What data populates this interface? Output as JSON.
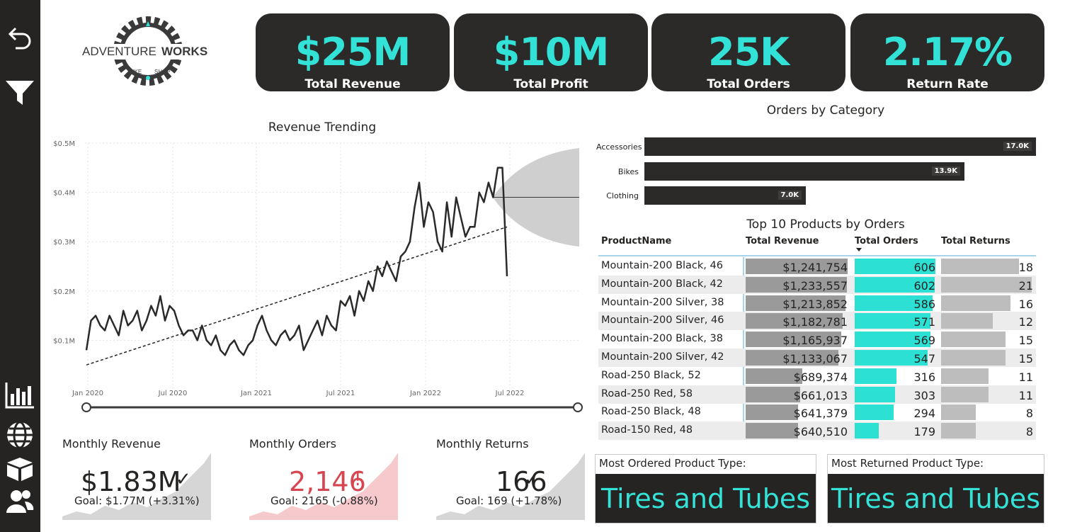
{
  "sidebar": {
    "icons": [
      "back-arrow-icon",
      "filter-icon",
      "bar-chart-icon",
      "globe-icon",
      "box-icon",
      "users-icon"
    ]
  },
  "logo": {
    "text_a": "ADVENTURE",
    "text_b": "WORKS",
    "ring_left": "BIKE",
    "ring_right": "SHOP"
  },
  "kpis": [
    {
      "value": "$25M",
      "label": "Total Revenue"
    },
    {
      "value": "$10M",
      "label": "Total Profit"
    },
    {
      "value": "25K",
      "label": "Total Orders"
    },
    {
      "value": "2.17%",
      "label": "Return Rate"
    }
  ],
  "revenue_trend": {
    "title": "Revenue Trending",
    "y_ticks": [
      "$0.1M",
      "$0.2M",
      "$0.3M",
      "$0.4M",
      "$0.5M"
    ],
    "x_ticks": [
      "Jan 2020",
      "Jul 2020",
      "Jan 2021",
      "Jul 2021",
      "Jan 2022",
      "Jul 2022"
    ]
  },
  "chart_data": [
    {
      "type": "line",
      "title": "Revenue Trending",
      "xlabel": "",
      "ylabel": "",
      "ylim": [
        0,
        0.5
      ],
      "y_unit": "$M",
      "x_range": [
        "2020-01",
        "2022-07"
      ],
      "series": [
        {
          "values": [
            0.08,
            0.14,
            0.15,
            0.13,
            0.12,
            0.15,
            0.13,
            0.11,
            0.16,
            0.13,
            0.14,
            0.16,
            0.12,
            0.14,
            0.17,
            0.15,
            0.19,
            0.14,
            0.17,
            0.16,
            0.13,
            0.11,
            0.12,
            0.12,
            0.1,
            0.13,
            0.1,
            0.09,
            0.11,
            0.08,
            0.07,
            0.09,
            0.1,
            0.08,
            0.07,
            0.09,
            0.1,
            0.13,
            0.15,
            0.12,
            0.1,
            0.09,
            0.11,
            0.12,
            0.1,
            0.11,
            0.13,
            0.08,
            0.1,
            0.12,
            0.14,
            0.11,
            0.15,
            0.13,
            0.12,
            0.18,
            0.17,
            0.19,
            0.15,
            0.2,
            0.18,
            0.22,
            0.2,
            0.25,
            0.23,
            0.26,
            0.24,
            0.22,
            0.27,
            0.28,
            0.3,
            0.37,
            0.42,
            0.33,
            0.38,
            0.36,
            0.3,
            0.28,
            0.38,
            0.31,
            0.39,
            0.35,
            0.31,
            0.33,
            0.33,
            0.4,
            0.38,
            0.42,
            0.39,
            0.45,
            0.45,
            0.23
          ]
        }
      ],
      "trend_line": {
        "from": 0.05,
        "to": 0.33
      },
      "forecast": {
        "start": 0.39,
        "upper": 0.49,
        "lower": 0.29
      }
    },
    {
      "type": "bar",
      "title": "Orders by Category",
      "categories": [
        "Accessories",
        "Bikes",
        "Clothing"
      ],
      "values": [
        17.0,
        13.9,
        7.0
      ],
      "labels": [
        "17.0K",
        "13.9K",
        "7.0K"
      ],
      "unit": "K"
    }
  ],
  "orders_by_category": {
    "title": "Orders by Category",
    "items": [
      {
        "name": "Accessories",
        "label": "17.0K",
        "value": 17.0
      },
      {
        "name": "Bikes",
        "label": "13.9K",
        "value": 13.9
      },
      {
        "name": "Clothing",
        "label": "7.0K",
        "value": 7.0
      }
    ]
  },
  "top_products": {
    "title": "Top 10 Products by Orders",
    "headers": [
      "ProductName",
      "Total Revenue",
      "Total Orders",
      "Total Returns"
    ],
    "rows": [
      {
        "name": "Mountain-200 Black, 46",
        "revenue": "$1,241,754",
        "rev_val": 1241754,
        "orders": "606",
        "ord_val": 606,
        "returns": "18",
        "ret_val": 18
      },
      {
        "name": "Mountain-200 Black, 42",
        "revenue": "$1,233,557",
        "rev_val": 1233557,
        "orders": "602",
        "ord_val": 602,
        "returns": "21",
        "ret_val": 21
      },
      {
        "name": "Mountain-200 Silver, 38",
        "revenue": "$1,213,852",
        "rev_val": 1213852,
        "orders": "586",
        "ord_val": 586,
        "returns": "16",
        "ret_val": 16
      },
      {
        "name": "Mountain-200 Silver, 46",
        "revenue": "$1,182,781",
        "rev_val": 1182781,
        "orders": "571",
        "ord_val": 571,
        "returns": "12",
        "ret_val": 12
      },
      {
        "name": "Mountain-200 Black, 38",
        "revenue": "$1,165,937",
        "rev_val": 1165937,
        "orders": "569",
        "ord_val": 569,
        "returns": "15",
        "ret_val": 15
      },
      {
        "name": "Mountain-200 Silver, 42",
        "revenue": "$1,133,067",
        "rev_val": 1133067,
        "orders": "547",
        "ord_val": 547,
        "returns": "15",
        "ret_val": 15
      },
      {
        "name": "Road-250 Black, 52",
        "revenue": "$689,374",
        "rev_val": 689374,
        "orders": "316",
        "ord_val": 316,
        "returns": "11",
        "ret_val": 11
      },
      {
        "name": "Road-250 Red, 58",
        "revenue": "$661,013",
        "rev_val": 661013,
        "orders": "303",
        "ord_val": 303,
        "returns": "11",
        "ret_val": 11
      },
      {
        "name": "Road-250 Black, 48",
        "revenue": "$641,379",
        "rev_val": 641379,
        "orders": "294",
        "ord_val": 294,
        "returns": "8",
        "ret_val": 8
      },
      {
        "name": "Road-150 Red, 48",
        "revenue": "$640,510",
        "rev_val": 640510,
        "orders": "179",
        "ord_val": 179,
        "returns": "8",
        "ret_val": 8
      }
    ]
  },
  "monthly": [
    {
      "title": "Monthly Revenue",
      "value": "$1.83M",
      "status": "✓",
      "goal": "Goal: $1.77M (+3.31%)",
      "color": "#252423",
      "area_color": "#d6d6d6"
    },
    {
      "title": "Monthly Orders",
      "value": "2,146",
      "status": "!",
      "goal": "Goal: 2165 (-0.88%)",
      "color": "#d64550",
      "area_color": "#f6c9cc"
    },
    {
      "title": "Monthly Returns",
      "value": "166",
      "status": "✓",
      "goal": "Goal: 169 (+1.78%)",
      "color": "#252423",
      "area_color": "#d6d6d6"
    }
  ],
  "product_types": [
    {
      "label": "Most Ordered Product Type:",
      "value": "Tires and Tubes"
    },
    {
      "label": "Most Returned Product Type:",
      "value": "Tires and Tubes"
    }
  ],
  "colors": {
    "accent": "#33e2d6",
    "dark": "#252423",
    "bar_gray": "#9a9a9a",
    "alert": "#d64550"
  }
}
